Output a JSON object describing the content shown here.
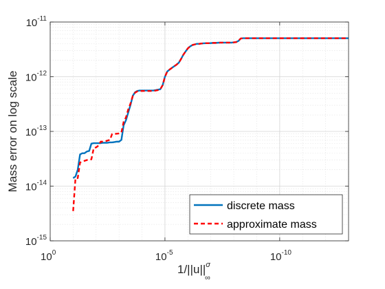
{
  "chart_data": {
    "type": "line",
    "title": "",
    "xlabel": "1/||u||",
    "xlabel_sup": "σ",
    "xlabel_sub": "∞",
    "ylabel": "Mass error on log scale",
    "x_scale": "log",
    "y_scale": "log",
    "x_reversed": true,
    "xlim": [
      1,
      1e-13
    ],
    "ylim": [
      1e-15,
      1e-11
    ],
    "grid": true,
    "minor_grid": true,
    "legend_position": "bottom-right",
    "x_ticks": [
      {
        "value": 1,
        "base": "10",
        "exp": "0"
      },
      {
        "value": 1e-05,
        "base": "10",
        "exp": "-5"
      },
      {
        "value": 1e-10,
        "base": "10",
        "exp": "-10"
      }
    ],
    "y_ticks": [
      {
        "value": 1e-15,
        "base": "10",
        "exp": "-15"
      },
      {
        "value": 1e-14,
        "base": "10",
        "exp": "-14"
      },
      {
        "value": 1e-13,
        "base": "10",
        "exp": "-13"
      },
      {
        "value": 1e-12,
        "base": "10",
        "exp": "-12"
      },
      {
        "value": 1e-11,
        "base": "10",
        "exp": "-11"
      }
    ],
    "series": [
      {
        "name": "discrete mass",
        "color": "#0072BD",
        "style": "solid",
        "x": [
          0.1,
          0.079,
          0.063,
          0.05,
          0.04,
          0.032,
          0.025,
          0.02,
          0.016,
          0.0126,
          0.01,
          0.0079,
          0.0063,
          0.005,
          0.004,
          0.0032,
          0.0025,
          0.002,
          0.00158,
          0.00126,
          0.001,
          0.00079,
          0.00063,
          0.0005,
          0.0004,
          0.00032,
          0.00025,
          0.0002,
          0.00016,
          0.000126,
          0.0001,
          7.9e-05,
          6.3e-05,
          5e-05,
          4e-05,
          3.2e-05,
          2.5e-05,
          2e-05,
          1.6e-05,
          1.26e-05,
          1e-05,
          7.9e-06,
          6.3e-06,
          5e-06,
          4e-06,
          3.2e-06,
          2.5e-06,
          2e-06,
          1.6e-06,
          1.26e-06,
          1e-06,
          7.9e-07,
          6.3e-07,
          5e-07,
          4e-07,
          3.2e-07,
          2.5e-07,
          2e-07,
          1.6e-07,
          1.26e-07,
          1e-07,
          7.9e-08,
          6.3e-08,
          5e-08,
          4e-08,
          3.2e-08,
          2.5e-08,
          2e-08,
          1.6e-08,
          1.26e-08,
          1e-08,
          7.9e-09,
          6.3e-09,
          5e-09,
          4e-09,
          3.2e-09,
          2.5e-09,
          2e-09,
          1.6e-09,
          1.26e-09,
          1e-09,
          7.9e-10,
          6.3e-10,
          5e-10,
          4e-10,
          3.2e-10,
          2.5e-10,
          2e-10,
          1.6e-10,
          1.26e-10,
          1e-10,
          1e-11,
          1e-12,
          1e-13
        ],
        "y": [
          1.4e-14,
          1.5e-14,
          2e-14,
          3.8e-14,
          4e-14,
          4e-14,
          4.3e-14,
          4.4e-14,
          6e-14,
          6.1e-14,
          6.1e-14,
          6.1e-14,
          6.1e-14,
          6.2e-14,
          6.2e-14,
          6.2e-14,
          6.3e-14,
          6.3e-14,
          6.4e-14,
          6.5e-14,
          6.5e-14,
          7e-14,
          1.3e-13,
          1.6e-13,
          2.2e-13,
          3e-13,
          4.5e-13,
          5.2e-13,
          5.5e-13,
          5.6e-13,
          5.6e-13,
          5.6e-13,
          5.6e-13,
          5.6e-13,
          5.6e-13,
          5.6e-13,
          5.7e-13,
          5.8e-13,
          5.9e-13,
          7e-13,
          1e-12,
          1.25e-12,
          1.35e-12,
          1.45e-12,
          1.55e-12,
          1.65e-12,
          1.8e-12,
          2.1e-12,
          2.5e-12,
          2.9e-12,
          3.3e-12,
          3.6e-12,
          3.8e-12,
          3.9e-12,
          4e-12,
          4e-12,
          4.05e-12,
          4.08e-12,
          4.1e-12,
          4.1e-12,
          4.12e-12,
          4.15e-12,
          4.15e-12,
          4.18e-12,
          4.2e-12,
          4.2e-12,
          4.2e-12,
          4.2e-12,
          4.2e-12,
          4.2e-12,
          4.25e-12,
          4.3e-12,
          4.5e-12,
          5e-12,
          5.05e-12,
          5.05e-12,
          5.05e-12,
          5.05e-12,
          5.05e-12,
          5.05e-12,
          5.05e-12,
          5.05e-12,
          5.05e-12,
          5.05e-12,
          5.05e-12,
          5.05e-12,
          5.05e-12,
          5.05e-12,
          5.05e-12,
          5.05e-12,
          5.05e-12,
          5.05e-12,
          5.05e-12,
          5.05e-12
        ]
      },
      {
        "name": "approximate mass",
        "color": "#FF0000",
        "style": "dashed",
        "x": [
          0.1,
          0.079,
          0.063,
          0.05,
          0.04,
          0.032,
          0.025,
          0.02,
          0.016,
          0.0126,
          0.01,
          0.0079,
          0.0063,
          0.005,
          0.004,
          0.0032,
          0.0025,
          0.002,
          0.00158,
          0.00126,
          0.001,
          0.00079,
          0.00063,
          0.0005,
          0.0004,
          0.00032,
          0.00025,
          0.0002,
          0.00016,
          0.000126,
          0.0001,
          7.9e-05,
          6.3e-05,
          5e-05,
          4e-05,
          3.2e-05,
          2.5e-05,
          2e-05,
          1.6e-05,
          1.26e-05,
          1e-05,
          7.9e-06,
          6.3e-06,
          5e-06,
          4e-06,
          3.2e-06,
          2.5e-06,
          2e-06,
          1.6e-06,
          1.26e-06,
          1e-06,
          7.9e-07,
          6.3e-07,
          5e-07,
          4e-07,
          3.2e-07,
          2.5e-07,
          2e-07,
          1.6e-07,
          1.26e-07,
          1e-07,
          7.9e-08,
          6.3e-08,
          5e-08,
          4e-08,
          3.2e-08,
          2.5e-08,
          2e-08,
          1.6e-08,
          1.26e-08,
          1e-08,
          7.9e-09,
          6.3e-09,
          5e-09,
          4e-09,
          3.2e-09,
          2.5e-09,
          2e-09,
          1.6e-09,
          1.26e-09,
          1e-09,
          7.9e-10,
          6.3e-10,
          5e-10,
          4e-10,
          3.2e-10,
          2.5e-10,
          2e-10,
          1.6e-10,
          1.26e-10,
          1e-10,
          1e-11,
          1e-12,
          1e-13
        ],
        "y": [
          3.5e-15,
          1.4e-14,
          1.4e-14,
          2.7e-14,
          2.8e-14,
          2.9e-14,
          3e-14,
          3e-14,
          3.1e-14,
          5e-14,
          5.1e-14,
          5.5e-14,
          6.5e-14,
          6.5e-14,
          6.6e-14,
          6.8e-14,
          7e-14,
          9e-14,
          9e-14,
          9.1e-14,
          9.2e-14,
          9.5e-14,
          1.5e-13,
          1.8e-13,
          2.5e-13,
          3.2e-13,
          4.5e-13,
          5.1e-13,
          5.4e-13,
          5.5e-13,
          5.5e-13,
          5.5e-13,
          5.5e-13,
          5.5e-13,
          5.5e-13,
          5.5e-13,
          5.6e-13,
          5.7e-13,
          5.9e-13,
          7e-13,
          1e-12,
          1.25e-12,
          1.35e-12,
          1.45e-12,
          1.55e-12,
          1.65e-12,
          1.8e-12,
          2.1e-12,
          2.5e-12,
          2.9e-12,
          3.3e-12,
          3.6e-12,
          3.8e-12,
          3.9e-12,
          4e-12,
          4e-12,
          4.05e-12,
          4.08e-12,
          4.1e-12,
          4.1e-12,
          4.12e-12,
          4.15e-12,
          4.15e-12,
          4.18e-12,
          4.2e-12,
          4.2e-12,
          4.2e-12,
          4.2e-12,
          4.2e-12,
          4.2e-12,
          4.25e-12,
          4.3e-12,
          4.5e-12,
          5e-12,
          5.05e-12,
          5.05e-12,
          5.05e-12,
          5.05e-12,
          5.05e-12,
          5.05e-12,
          5.05e-12,
          5.05e-12,
          5.05e-12,
          5.05e-12,
          5.05e-12,
          5.05e-12,
          5.05e-12,
          5.05e-12,
          5.05e-12,
          5.05e-12,
          5.05e-12,
          5.05e-12,
          5.05e-12,
          5.05e-12
        ]
      }
    ]
  }
}
